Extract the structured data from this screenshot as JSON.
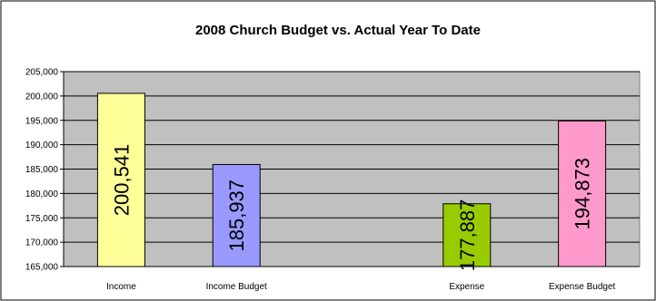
{
  "chart_data": {
    "type": "bar",
    "title": "2008 Church Budget vs. Actual Year To Date",
    "xlabel": "",
    "ylabel": "",
    "categories": [
      "Income",
      "Income Budget",
      "",
      "Expense",
      "Expense Budget"
    ],
    "values": [
      200541,
      185937,
      null,
      177887,
      194873
    ],
    "data_labels": [
      "200,541",
      "185,937",
      "",
      "177,887",
      "194,873"
    ],
    "bar_colors": [
      "#ffff99",
      "#9999ff",
      "#ffffff",
      "#99cc00",
      "#ff99cc"
    ],
    "ylim": [
      165000,
      205000
    ],
    "y_ticks": [
      165000,
      170000,
      175000,
      180000,
      185000,
      190000,
      195000,
      200000,
      205000
    ],
    "y_tick_labels": [
      "165,000",
      "170,000",
      "175,000",
      "180,000",
      "185,000",
      "190,000",
      "195,000",
      "200,000",
      "205,000"
    ],
    "grid": true,
    "legend": "none",
    "plot_background": "#c0c0c0"
  }
}
